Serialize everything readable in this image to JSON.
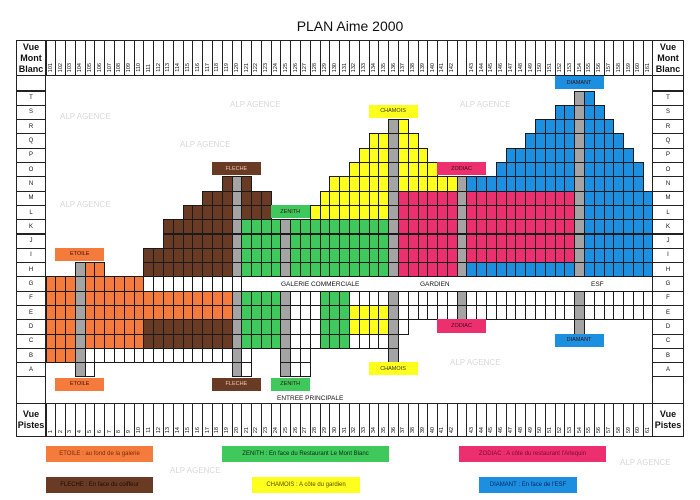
{
  "title": "PLAN Aime 2000",
  "header": {
    "top_side_label": "Vue Mont Blanc",
    "bottom_side_label": "Vue Pistes",
    "top_numbers": [
      "101",
      "102",
      "103",
      "104",
      "105",
      "106",
      "107",
      "108",
      "109",
      "110",
      "111",
      "112",
      "113",
      "114",
      "115",
      "116",
      "117",
      "118",
      "119",
      "120",
      "121",
      "122",
      "123",
      "124",
      "125",
      "126",
      "127",
      "128",
      "129",
      "130",
      "131",
      "132",
      "133",
      "134",
      "135",
      "136",
      "137",
      "138",
      "139",
      "140",
      "141",
      "142",
      "",
      "143",
      "144",
      "145",
      "146",
      "147",
      "148",
      "149",
      "150",
      "151",
      "152",
      "153",
      "154",
      "155",
      "156",
      "157",
      "158",
      "159",
      "160",
      "161"
    ],
    "bottom_numbers": [
      "1",
      "2",
      "3",
      "4",
      "5",
      "6",
      "7",
      "8",
      "9",
      "10",
      "11",
      "12",
      "13",
      "14",
      "15",
      "16",
      "17",
      "18",
      "19",
      "20",
      "21",
      "22",
      "23",
      "24",
      "25",
      "26",
      "27",
      "28",
      "29",
      "30",
      "31",
      "32",
      "33",
      "34",
      "35",
      "36",
      "37",
      "38",
      "39",
      "40",
      "41",
      "42",
      "",
      "43",
      "44",
      "45",
      "46",
      "47",
      "48",
      "49",
      "50",
      "51",
      "52",
      "53",
      "54",
      "55",
      "56",
      "57",
      "58",
      "59",
      "60",
      "61"
    ]
  },
  "row_letters": [
    "T",
    "S",
    "R",
    "Q",
    "P",
    "O",
    "N",
    "M",
    "L",
    "K",
    "J",
    "I",
    "H",
    "G",
    "F",
    "E",
    "D",
    "C",
    "B",
    "A"
  ],
  "colors": {
    "o": "#f47b3b",
    "b": "#6a3b24",
    "g": "#3fc85c",
    "y": "#ffff1e",
    "p": "#ec2f6f",
    "u": "#1d8fe0",
    "x": "#a4a4a4",
    "w": "#ffffff"
  },
  "plan": {
    "legend_codes": {
      "o": "ETOILE",
      "b": "FLECHE",
      "g": "ZENITH",
      "y": "CHAMOIS",
      "p": "ZODIAC",
      "u": "DIAMANT",
      "x": "stairs",
      "w": "empty"
    },
    "rows": [
      "......................................................xu......",
      "....................................................uuxuu.....",
      "...................................xy.............uuuuxuuu....",
      ".................................yyxyy...........uuuuuxuuuu...",
      "................................yyyxyyy........uuuuuuuxuuuuu..",
      "...............................yyyyxyyyy......uuuuuuuuxuuuuuu.",
      "..................bxb........yyyyyyxyyyyyyxuuuuuuuuuuuxuuuuuu.",
      "................bbbxbbb.....yyyyyyyxppppppxpppppppppppxuuuuuuu",
      "..............bbbbbxbbb....yyyyyyyyxppppppxpppppppppppxuuuuuuu",
      "............bbbbbbbxggggxggggggggggxppppppxpppppppppppxuuuuuuu",
      "............bbbbbbbxggggxggggggggggxppppppxpppppppppppxuuuuuuu",
      "..........bbbbbbbbbxggggxggggggggggxppppppxpppppppppppxuuuuuuu",
      "...xoo....bbbbbbbbbxggggxggggggggggxppppppxuuuuuuuuuuuxuuuuuuu",
      "oooxoooooowwwwwwwwww..........................................",
      "oooxoooooooooooooooxggggxwwwgggwwwwxwwwwwwxwwwwwwwwwwwxwwwwwww",
      "oooxoooooooooooooooxggggxwwwgggyyyyxwwwwwwxwwwwwwwwwwwxwwwwwww",
      "oooxoooooobbbbbbbbbxggggxwwwgggyyyyxw.................x.......",
      "oooxoooooobbbbbbbbbxggggxwwwgggwwwwx..........................",
      "oooxwwwwwwwwwwwwwwwxw...xww........x..........................",
      "...xw..............xw...xww..................................."
    ]
  },
  "labels": {
    "etoile": "ETOILE",
    "fleche": "FLECHE",
    "zenith": "ZENITH",
    "chamois": "CHAMOIS",
    "zodiac": "ZODIAC",
    "diamant": "DIAMANT",
    "galerie": "GALERIE COMMERCIALE",
    "gardien": "GARDIEN",
    "esf": "ESF",
    "entree": "ENTREE PRINCIPALE"
  },
  "legend": [
    {
      "text": "ETOILE : au fond de la galerie",
      "color": "#f47b3b"
    },
    {
      "text": "ZENITH : En face du Restaurant Le Mont Blanc",
      "color": "#3fc85c"
    },
    {
      "text": "ZODIAC : A côte du restaurant l'Arlequin",
      "color": "#ec2f6f"
    },
    {
      "text": "FLECHE : En face du coiffeur",
      "color": "#6a3b24"
    },
    {
      "text": "CHAMOIS : A côte du gardien",
      "color": "#ffff1e"
    },
    {
      "text": "DIAMANT : En face de l'ESF",
      "color": "#1d8fe0"
    }
  ],
  "watermark": "ALP AGENCE"
}
